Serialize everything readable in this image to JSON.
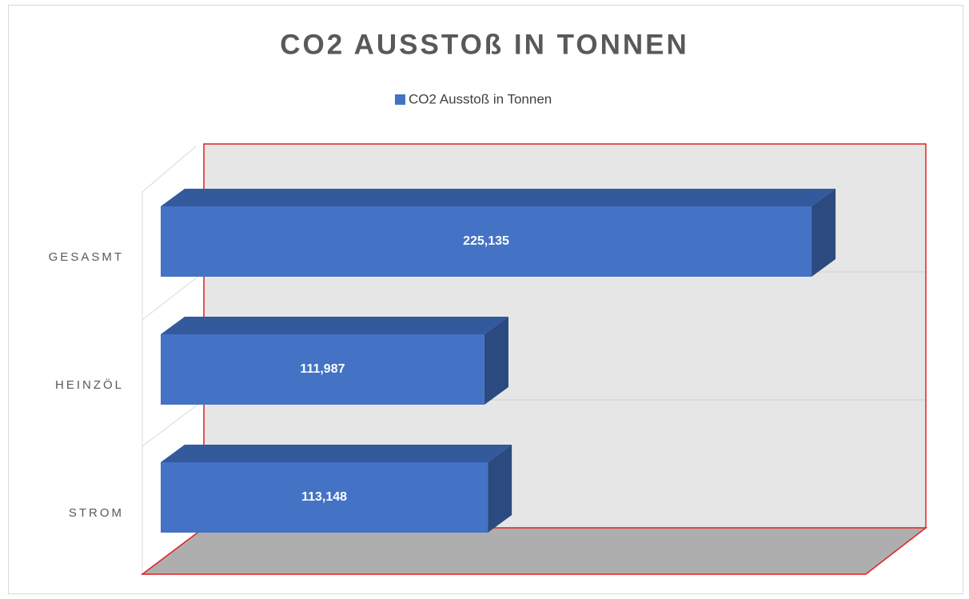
{
  "chart_data": {
    "type": "bar3d",
    "title": "CO2 AUSSTOß IN TONNEN",
    "categories": [
      "GESASMT",
      "HEINZÖL",
      "STROM"
    ],
    "series": [
      {
        "name": "CO2 Ausstoß in Tonnen",
        "color": "#4472c4",
        "values": [
          225.135,
          111.987,
          113.148
        ],
        "value_labels": [
          "225,135",
          "111,987",
          "113,148"
        ]
      }
    ],
    "xlim": [
      0,
      250
    ],
    "legend": "top"
  }
}
